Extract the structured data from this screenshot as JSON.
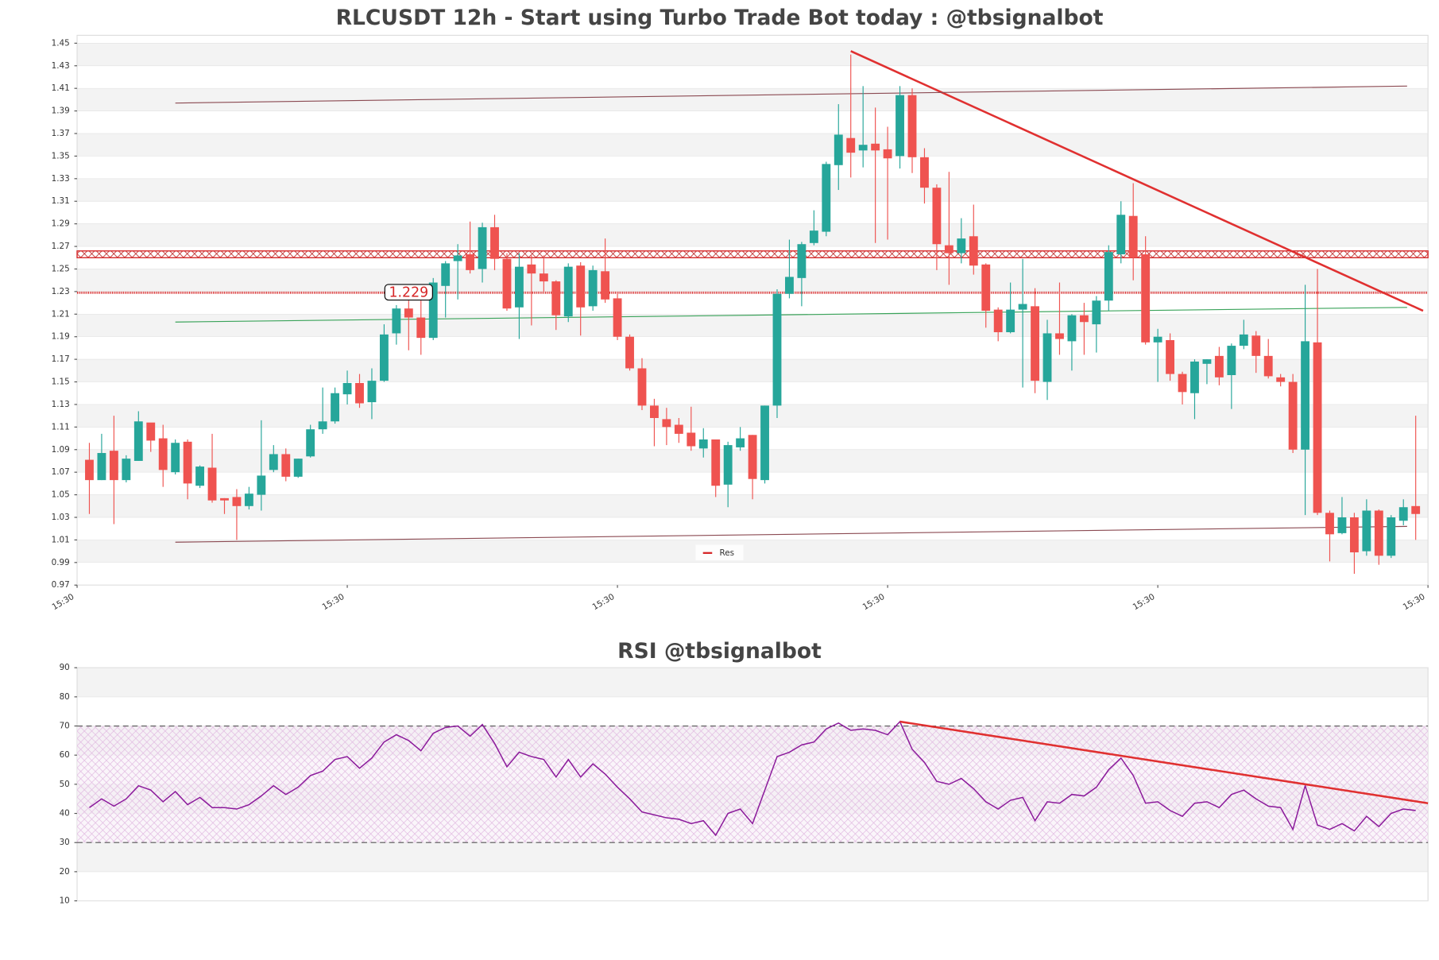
{
  "chart_data": [
    {
      "type": "candlestick",
      "title": "RLCUSDT 12h - Start using Turbo Trade Bot today : @tbsignalbot",
      "up_color": "#26a69a",
      "down_color": "#ef5350",
      "open": [
        1.081,
        1.063,
        1.089,
        1.063,
        1.08,
        1.114,
        1.1,
        1.07,
        1.097,
        1.058,
        1.074,
        1.047,
        1.048,
        1.04,
        1.05,
        1.072,
        1.086,
        1.066,
        1.084,
        1.108,
        1.115,
        1.139,
        1.149,
        1.132,
        1.151,
        1.193,
        1.215,
        1.207,
        1.189,
        1.235,
        1.257,
        1.263,
        1.25,
        1.287,
        1.259,
        1.216,
        1.254,
        1.246,
        1.239,
        1.208,
        1.253,
        1.217,
        1.248,
        1.224,
        1.19,
        1.162,
        1.129,
        1.117,
        1.112,
        1.105,
        1.091,
        1.099,
        1.059,
        1.092,
        1.103,
        1.063,
        1.129,
        1.228,
        1.242,
        1.273,
        1.283,
        1.342,
        1.366,
        1.355,
        1.361,
        1.356,
        1.35,
        1.404,
        1.349,
        1.322,
        1.271,
        1.264,
        1.279,
        1.254,
        1.214,
        1.194,
        1.214,
        1.217,
        1.15,
        1.193,
        1.186,
        1.209,
        1.201,
        1.222,
        1.263,
        1.297,
        1.263,
        1.185,
        1.187,
        1.157,
        1.14,
        1.166,
        1.173,
        1.156,
        1.182,
        1.191,
        1.173,
        1.154,
        1.15,
        1.09,
        1.185,
        1.034,
        1.016,
        1.03,
        1.0,
        1.036,
        0.996,
        1.027,
        1.04
      ],
      "high": [
        1.096,
        1.104,
        1.12,
        1.085,
        1.124,
        1.113,
        1.112,
        1.099,
        1.099,
        1.076,
        1.104,
        1.047,
        1.055,
        1.057,
        1.116,
        1.094,
        1.091,
        1.082,
        1.112,
        1.145,
        1.145,
        1.16,
        1.157,
        1.162,
        1.201,
        1.218,
        1.222,
        1.222,
        1.242,
        1.257,
        1.272,
        1.292,
        1.291,
        1.298,
        1.264,
        1.264,
        1.262,
        1.262,
        1.24,
        1.255,
        1.256,
        1.253,
        1.277,
        1.228,
        1.192,
        1.171,
        1.135,
        1.127,
        1.118,
        1.128,
        1.109,
        1.099,
        1.097,
        1.11,
        1.103,
        1.129,
        1.232,
        1.276,
        1.274,
        1.302,
        1.345,
        1.396,
        1.44,
        1.412,
        1.393,
        1.376,
        1.412,
        1.41,
        1.357,
        1.325,
        1.336,
        1.295,
        1.307,
        1.255,
        1.216,
        1.238,
        1.259,
        1.233,
        1.205,
        1.238,
        1.21,
        1.22,
        1.226,
        1.271,
        1.31,
        1.326,
        1.279,
        1.197,
        1.193,
        1.159,
        1.17,
        1.17,
        1.181,
        1.184,
        1.205,
        1.195,
        1.188,
        1.157,
        1.157,
        1.236,
        1.25,
        1.036,
        1.048,
        1.034,
        1.046,
        1.037,
        1.032,
        1.046,
        1.12
      ],
      "low": [
        1.033,
        1.063,
        1.024,
        1.061,
        1.08,
        1.088,
        1.057,
        1.068,
        1.046,
        1.056,
        1.043,
        1.033,
        1.01,
        1.037,
        1.036,
        1.07,
        1.062,
        1.065,
        1.083,
        1.104,
        1.113,
        1.13,
        1.127,
        1.117,
        1.15,
        1.183,
        1.178,
        1.174,
        1.187,
        1.207,
        1.223,
        1.246,
        1.238,
        1.249,
        1.213,
        1.188,
        1.2,
        1.23,
        1.196,
        1.203,
        1.191,
        1.213,
        1.22,
        1.187,
        1.16,
        1.125,
        1.093,
        1.094,
        1.096,
        1.089,
        1.083,
        1.048,
        1.039,
        1.089,
        1.046,
        1.06,
        1.118,
        1.224,
        1.217,
        1.271,
        1.279,
        1.32,
        1.331,
        1.34,
        1.273,
        1.276,
        1.339,
        1.335,
        1.308,
        1.249,
        1.236,
        1.255,
        1.245,
        1.198,
        1.186,
        1.193,
        1.145,
        1.14,
        1.134,
        1.174,
        1.16,
        1.174,
        1.176,
        1.213,
        1.255,
        1.24,
        1.183,
        1.15,
        1.151,
        1.13,
        1.117,
        1.148,
        1.147,
        1.126,
        1.179,
        1.158,
        1.153,
        1.146,
        1.087,
        1.032,
        1.032,
        0.991,
        1.015,
        0.98,
        0.996,
        0.988,
        0.994,
        1.023,
        1.01
      ],
      "close": [
        1.063,
        1.087,
        1.063,
        1.082,
        1.115,
        1.098,
        1.072,
        1.096,
        1.06,
        1.075,
        1.045,
        1.045,
        1.04,
        1.051,
        1.067,
        1.086,
        1.066,
        1.082,
        1.108,
        1.115,
        1.14,
        1.149,
        1.131,
        1.151,
        1.192,
        1.215,
        1.207,
        1.189,
        1.238,
        1.255,
        1.262,
        1.249,
        1.287,
        1.259,
        1.215,
        1.252,
        1.246,
        1.239,
        1.209,
        1.252,
        1.216,
        1.249,
        1.223,
        1.19,
        1.162,
        1.129,
        1.118,
        1.11,
        1.104,
        1.093,
        1.099,
        1.058,
        1.094,
        1.1,
        1.064,
        1.129,
        1.228,
        1.243,
        1.272,
        1.284,
        1.343,
        1.369,
        1.353,
        1.36,
        1.355,
        1.348,
        1.404,
        1.349,
        1.322,
        1.272,
        1.264,
        1.277,
        1.253,
        1.213,
        1.194,
        1.214,
        1.219,
        1.151,
        1.193,
        1.188,
        1.209,
        1.203,
        1.222,
        1.265,
        1.298,
        1.26,
        1.185,
        1.19,
        1.157,
        1.141,
        1.168,
        1.17,
        1.154,
        1.182,
        1.192,
        1.173,
        1.155,
        1.15,
        1.09,
        1.186,
        1.034,
        1.015,
        1.03,
        0.999,
        1.036,
        0.996,
        1.03,
        1.039,
        1.033
      ],
      "xlim": [
        -1,
        109
      ],
      "xticks": [
        {
          "value": -1,
          "label": "15:30"
        },
        {
          "value": 21,
          "label": "15:30"
        },
        {
          "value": 43,
          "label": "15:30"
        },
        {
          "value": 65,
          "label": "15:30"
        },
        {
          "value": 87,
          "label": "15:30"
        },
        {
          "value": 109,
          "label": "15:30"
        }
      ],
      "ylim": [
        0.97,
        1.457
      ],
      "yticks": [
        0.97,
        0.99,
        1.01,
        1.03,
        1.05,
        1.07,
        1.09,
        1.11,
        1.13,
        1.15,
        1.17,
        1.19,
        1.21,
        1.23,
        1.25,
        1.27,
        1.29,
        1.31,
        1.33,
        1.35,
        1.37,
        1.39,
        1.41,
        1.43,
        1.45
      ],
      "lines": [
        {
          "color": "#e03030",
          "x": [
            62,
            108.6
          ],
          "y": [
            1.443,
            1.213
          ]
        },
        {
          "color": "#8b4a52",
          "x": [
            7,
            107.3
          ],
          "y": [
            1.397,
            1.412
          ]
        },
        {
          "color": "#8b4a52",
          "x": [
            7,
            107.3
          ],
          "y": [
            1.008,
            1.022
          ]
        },
        {
          "color": "#3aa35a",
          "x": [
            7,
            107.3
          ],
          "y": [
            1.203,
            1.216
          ]
        }
      ],
      "series": [
        {
          "name": "Res",
          "color": "#d62728",
          "levels": [
            1.229,
            1.26,
            1.266
          ]
        }
      ],
      "price_label": 1.229,
      "price_label_at": 26
    },
    {
      "type": "line",
      "title": "RSI @tbsignalbot",
      "color": "#8b1a9b",
      "values": [
        42,
        45,
        42.5,
        45,
        49.5,
        48,
        44,
        47.5,
        43,
        45.5,
        42,
        42,
        41.5,
        43,
        46,
        49.5,
        46.5,
        49,
        53,
        54.5,
        58.5,
        59.5,
        55.5,
        59,
        64.5,
        67,
        65,
        61.5,
        67.5,
        69.5,
        70,
        66.5,
        70.5,
        64,
        56,
        61,
        59.5,
        58.5,
        52.5,
        58.5,
        52.5,
        57,
        53.5,
        49,
        45,
        40.5,
        39.5,
        38.5,
        38,
        36.5,
        37.5,
        32.5,
        40,
        41.5,
        36.5,
        48,
        59.5,
        61,
        63.5,
        64.5,
        69,
        71,
        68.5,
        69,
        68.5,
        67,
        71.5,
        62,
        57.5,
        51,
        50,
        52,
        48.5,
        44,
        41.5,
        44.5,
        45.5,
        37.5,
        44,
        43.5,
        46.5,
        46,
        49,
        55,
        59,
        53,
        43.5,
        44,
        41,
        39,
        43.5,
        44,
        42,
        46.5,
        48,
        45,
        42.5,
        42,
        34.5,
        49.5,
        36,
        34.5,
        36.5,
        34,
        39,
        35.5,
        40,
        41.5,
        41
      ],
      "xlim": [
        -1,
        109
      ],
      "ylim": [
        10,
        90
      ],
      "yticks": [
        10,
        20,
        30,
        40,
        50,
        60,
        70,
        80,
        90
      ],
      "hlines": [
        70,
        30
      ],
      "band": [
        30,
        70
      ],
      "lines": [
        {
          "color": "#e03030",
          "x": [
            66,
            109
          ],
          "y": [
            71.5,
            43.5
          ]
        }
      ]
    }
  ]
}
